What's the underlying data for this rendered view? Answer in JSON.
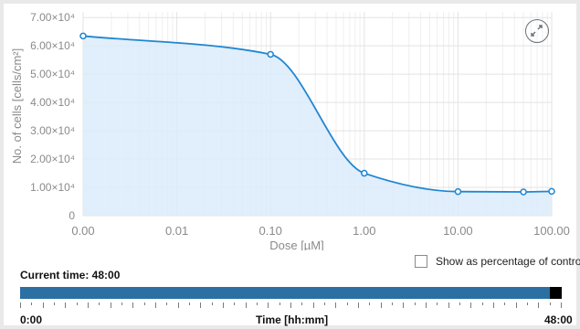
{
  "chart_data": {
    "type": "line",
    "x": [
      0,
      0.1,
      1,
      10,
      50,
      100
    ],
    "y": [
      63500,
      57000,
      15000,
      8500,
      8400,
      8600
    ],
    "xtick_labels": [
      "0.00",
      "0.01",
      "0.10",
      "1.00",
      "10.00",
      "100.00"
    ],
    "ytick_labels": [
      "0",
      "1.00×10⁴",
      "2.00×10⁴",
      "3.00×10⁴",
      "4.00×10⁴",
      "5.00×10⁴",
      "6.00×10⁴",
      "7.00×10⁴"
    ],
    "ytick_values": [
      0,
      10000,
      20000,
      30000,
      40000,
      50000,
      60000,
      70000
    ],
    "xlabel": "Dose [µM]",
    "ylabel": "No. of cells [cells/cm²]",
    "ylim": [
      0,
      72000
    ],
    "xscale": "log",
    "grid": true,
    "line_color": "#1f86d3",
    "fill_color": "#dcebfa"
  },
  "controls": {
    "expand_icon": "expand-icon",
    "percentage_label": "Show as percentage of control",
    "percentage_checked": false,
    "current_time_label": "Current time: 48:00",
    "timeline_progress": 1.0,
    "time_start": "0:00",
    "time_axis_label": "Time [hh:mm]",
    "time_end": "48:00",
    "timeline_color": "#2b6fa3"
  }
}
